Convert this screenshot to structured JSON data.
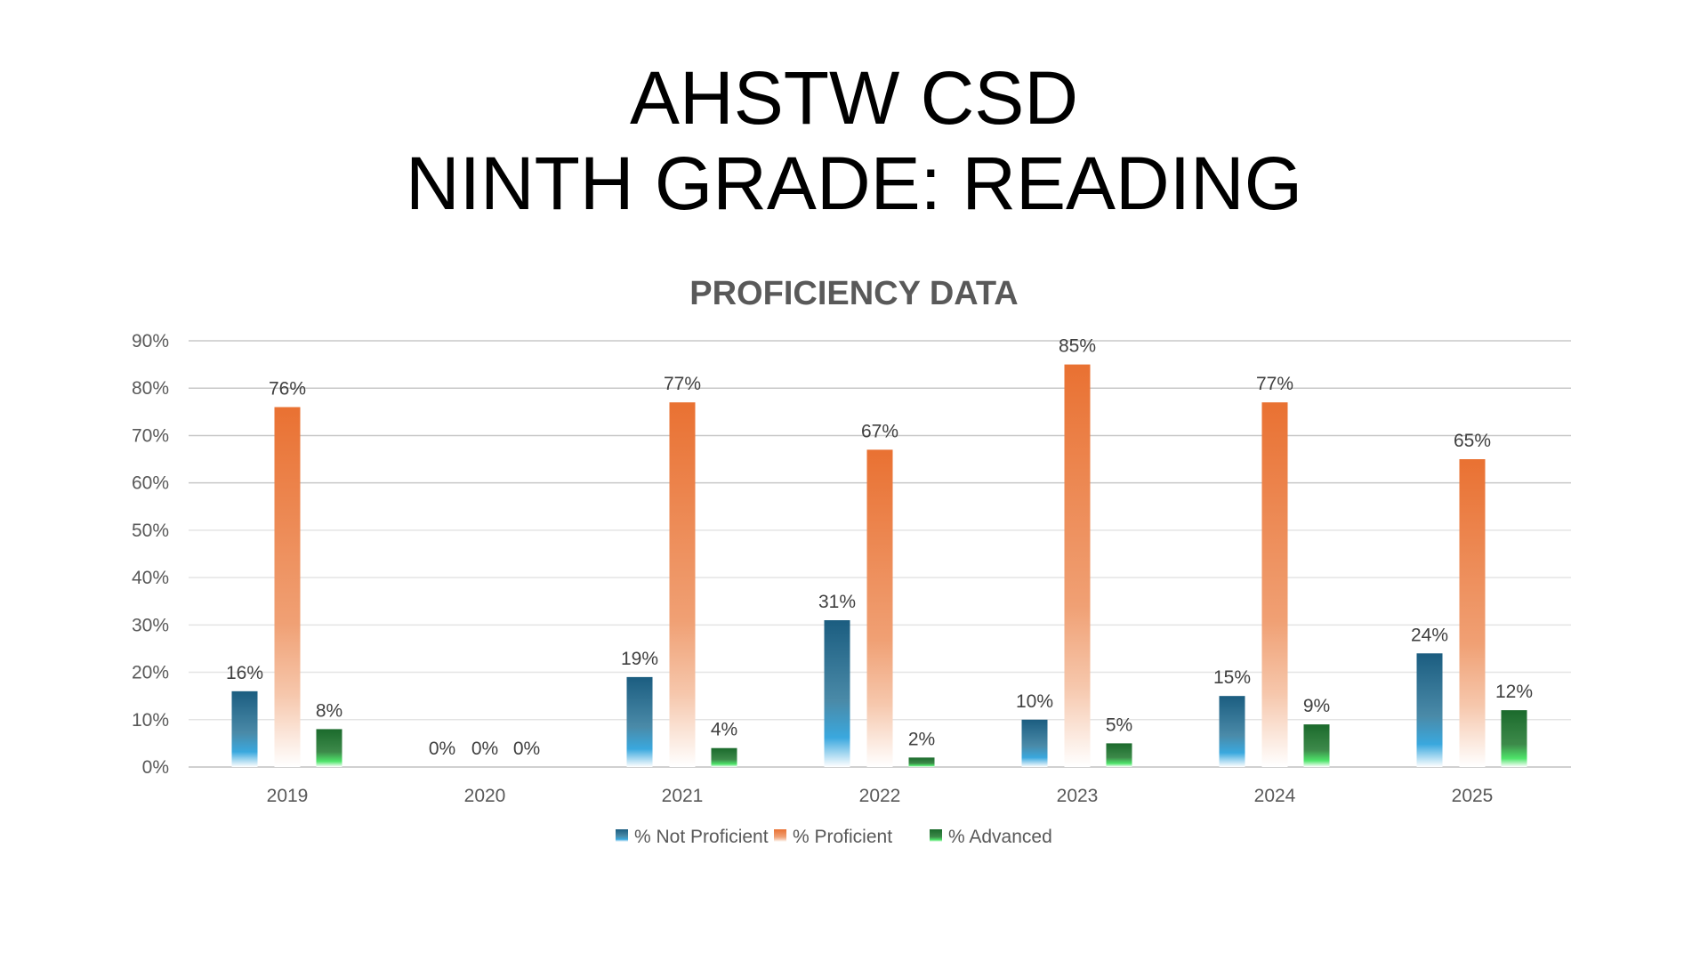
{
  "title_line1": "AHSTW CSD",
  "title_line2": "NINTH GRADE: READING",
  "chart_data": {
    "type": "bar",
    "title": "PROFICIENCY DATA",
    "categories": [
      "2019",
      "2020",
      "2021",
      "2022",
      "2023",
      "2024",
      "2025"
    ],
    "series": [
      {
        "name": "% Not Proficient",
        "values": [
          16,
          0,
          19,
          31,
          10,
          15,
          24
        ],
        "color": "#1f6285"
      },
      {
        "name": "% Proficient",
        "values": [
          76,
          0,
          77,
          67,
          85,
          77,
          65
        ],
        "color": "#e97132"
      },
      {
        "name": "% Advanced",
        "values": [
          8,
          0,
          4,
          2,
          5,
          9,
          12
        ],
        "color": "#1e6b2e"
      }
    ],
    "ylim": [
      0,
      90
    ],
    "yticks": [
      "0%",
      "10%",
      "20%",
      "30%",
      "40%",
      "50%",
      "60%",
      "70%",
      "80%",
      "90%"
    ],
    "value_format": "percent",
    "grid": true,
    "legend": "bottom"
  }
}
